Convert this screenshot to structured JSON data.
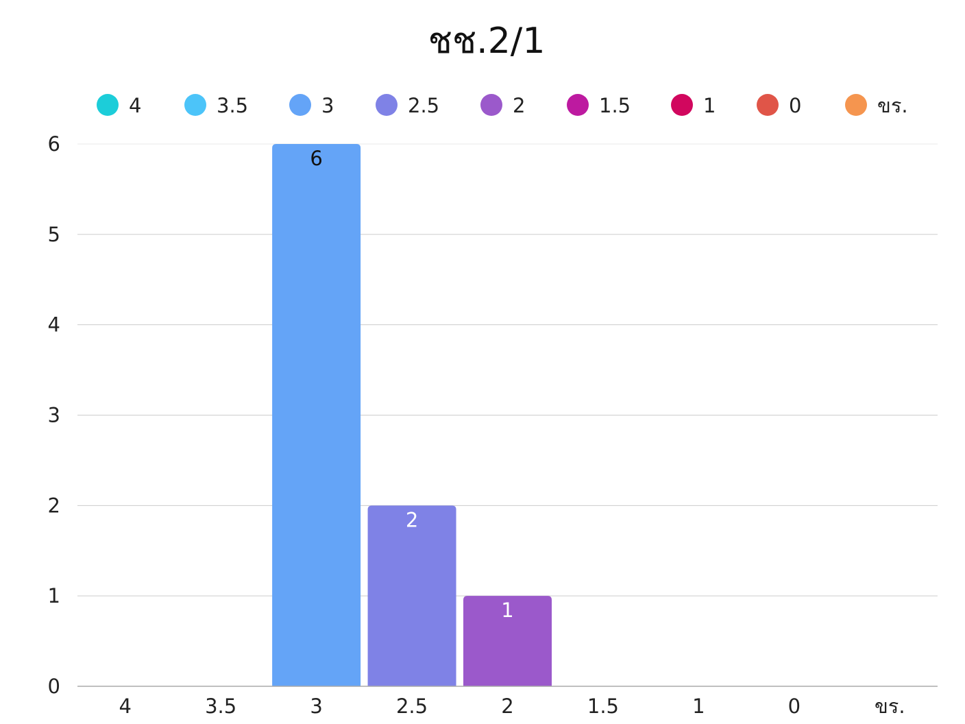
{
  "chart_data": {
    "type": "bar",
    "title": "ชช.2/1",
    "categories": [
      "4",
      "3.5",
      "3",
      "2.5",
      "2",
      "1.5",
      "1",
      "0",
      "ขร."
    ],
    "values": [
      0,
      0,
      6,
      2,
      1,
      0,
      0,
      0,
      0
    ],
    "data_labels": [
      "",
      "",
      "6",
      "2",
      "1",
      "",
      "",
      "",
      ""
    ],
    "colors": [
      "#1ccdd9",
      "#4cc4f9",
      "#64a4f7",
      "#7f82e6",
      "#9b59cb",
      "#bd1aa0",
      "#d1075e",
      "#e05548",
      "#f5954f"
    ],
    "label_colors": [
      "#111111",
      "#111111",
      "#111111",
      "#ffffff",
      "#ffffff",
      "#ffffff",
      "#ffffff",
      "#ffffff",
      "#ffffff"
    ],
    "legend": [
      "4",
      "3.5",
      "3",
      "2.5",
      "2",
      "1.5",
      "1",
      "0",
      "ขร."
    ],
    "legend_position": "top",
    "yticks": [
      0,
      1,
      2,
      3,
      4,
      5,
      6
    ],
    "ylim": [
      0,
      6
    ],
    "grid": true,
    "xlabel": "",
    "ylabel": ""
  }
}
